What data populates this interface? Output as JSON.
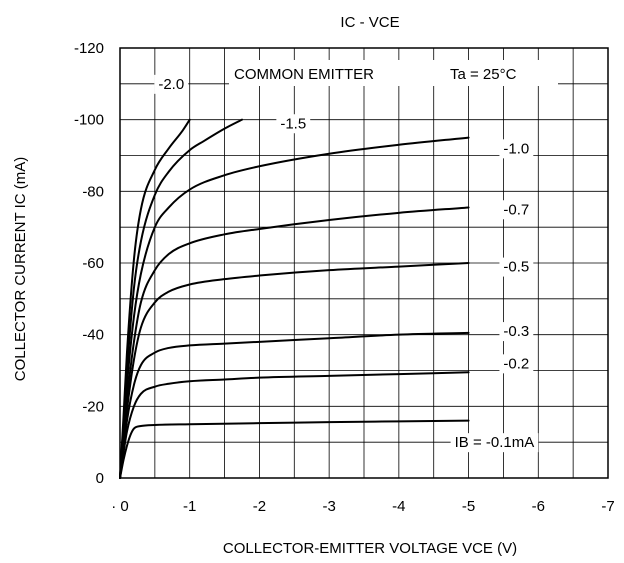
{
  "chart_data": {
    "type": "line",
    "title": "IC - VCE",
    "xlabel": "COLLECTOR-EMITTER VOLTAGE  VCE (V)",
    "ylabel": "COLLECTOR CURRENT IC (mA)",
    "xlim": [
      0,
      -7
    ],
    "ylim": [
      0,
      -120
    ],
    "x_ticks": [
      0,
      -1,
      -2,
      -3,
      -4,
      -5,
      -6,
      -7
    ],
    "x_tick_labels": [
      "· 0",
      "-1",
      "-2",
      "-3",
      "-4",
      "-5",
      "-6",
      "-7"
    ],
    "y_ticks": [
      0,
      -20,
      -40,
      -60,
      -80,
      -100,
      -120
    ],
    "y_tick_labels": [
      "0",
      "-20",
      "-40",
      "-60",
      "-80",
      "-100",
      "-120"
    ],
    "x_minor_step": -0.5,
    "y_minor_step": -10,
    "grid": true,
    "annotations": [
      "COMMON EMITTER",
      "Ta = 25°C"
    ],
    "series": [
      {
        "name": "IB = -0.1mA",
        "x": [
          0,
          -0.05,
          -0.1,
          -0.15,
          -0.2,
          -0.3,
          -0.5,
          -1,
          -2,
          -3,
          -4,
          -5
        ],
        "y": [
          0,
          -5,
          -9,
          -12,
          -13.8,
          -14.5,
          -14.8,
          -15,
          -15.3,
          -15.6,
          -15.8,
          -16
        ]
      },
      {
        "name": "-0.2",
        "x": [
          0,
          -0.05,
          -0.1,
          -0.2,
          -0.3,
          -0.5,
          -0.7,
          -1,
          -1.5,
          -2,
          -3,
          -4,
          -5
        ],
        "y": [
          0,
          -7,
          -13,
          -20,
          -23.5,
          -25.5,
          -26.3,
          -27,
          -27.5,
          -28,
          -28.5,
          -29,
          -29.5
        ]
      },
      {
        "name": "-0.3",
        "x": [
          0,
          -0.05,
          -0.1,
          -0.2,
          -0.3,
          -0.5,
          -0.7,
          -1,
          -1.5,
          -2,
          -3,
          -4,
          -5
        ],
        "y": [
          0,
          -8,
          -16,
          -26,
          -31.5,
          -35,
          -36.3,
          -37,
          -37.5,
          -38,
          -39,
          -40,
          -40.5
        ]
      },
      {
        "name": "-0.5",
        "x": [
          0,
          -0.05,
          -0.1,
          -0.2,
          -0.3,
          -0.5,
          -0.7,
          -1,
          -1.5,
          -2,
          -3,
          -4,
          -5
        ],
        "y": [
          0,
          -10,
          -19,
          -33,
          -42,
          -49,
          -52,
          -54,
          -55.5,
          -56.5,
          -58,
          -59,
          -60
        ]
      },
      {
        "name": "-0.7",
        "x": [
          0,
          -0.05,
          -0.1,
          -0.2,
          -0.3,
          -0.5,
          -0.7,
          -1,
          -1.5,
          -2,
          -3,
          -4,
          -5
        ],
        "y": [
          0,
          -12,
          -22,
          -38,
          -49,
          -58,
          -62.5,
          -65.5,
          -68,
          -69.5,
          -72,
          -74,
          -75.5
        ]
      },
      {
        "name": "-1.0",
        "x": [
          0,
          -0.05,
          -0.1,
          -0.2,
          -0.3,
          -0.5,
          -0.7,
          -1,
          -1.5,
          -2,
          -3,
          -4,
          -5
        ],
        "y": [
          0,
          -13,
          -26,
          -45,
          -57,
          -70,
          -75.5,
          -80.5,
          -84.5,
          -87,
          -90.5,
          -93,
          -95
        ]
      },
      {
        "name": "-1.5",
        "x": [
          0,
          -0.05,
          -0.1,
          -0.2,
          -0.3,
          -0.5,
          -0.7,
          -1,
          -1.2,
          -1.5,
          -1.75
        ],
        "y": [
          0,
          -15,
          -30,
          -53,
          -66,
          -79,
          -85.5,
          -91.5,
          -94,
          -97.5,
          -100
        ]
      },
      {
        "name": "-2.0",
        "x": [
          0,
          -0.05,
          -0.1,
          -0.2,
          -0.3,
          -0.5,
          -0.7,
          -0.9,
          -1.0
        ],
        "y": [
          0,
          -17,
          -35,
          -61,
          -75,
          -86,
          -92,
          -97,
          -100
        ]
      }
    ],
    "curve_labels": [
      {
        "text": "IB = -0.1mA",
        "x": -4.8,
        "y": -10
      },
      {
        "text": "-0.2",
        "x": -5.5,
        "y": -32
      },
      {
        "text": "-0.3",
        "x": -5.5,
        "y": -41
      },
      {
        "text": "-0.5",
        "x": -5.5,
        "y": -59
      },
      {
        "text": "-0.7",
        "x": -5.5,
        "y": -75
      },
      {
        "text": "-1.0",
        "x": -5.5,
        "y": -92
      },
      {
        "text": "-1.5",
        "x": -2.3,
        "y": -99
      },
      {
        "text": "-2.0",
        "x": -0.55,
        "y": -110
      }
    ]
  }
}
